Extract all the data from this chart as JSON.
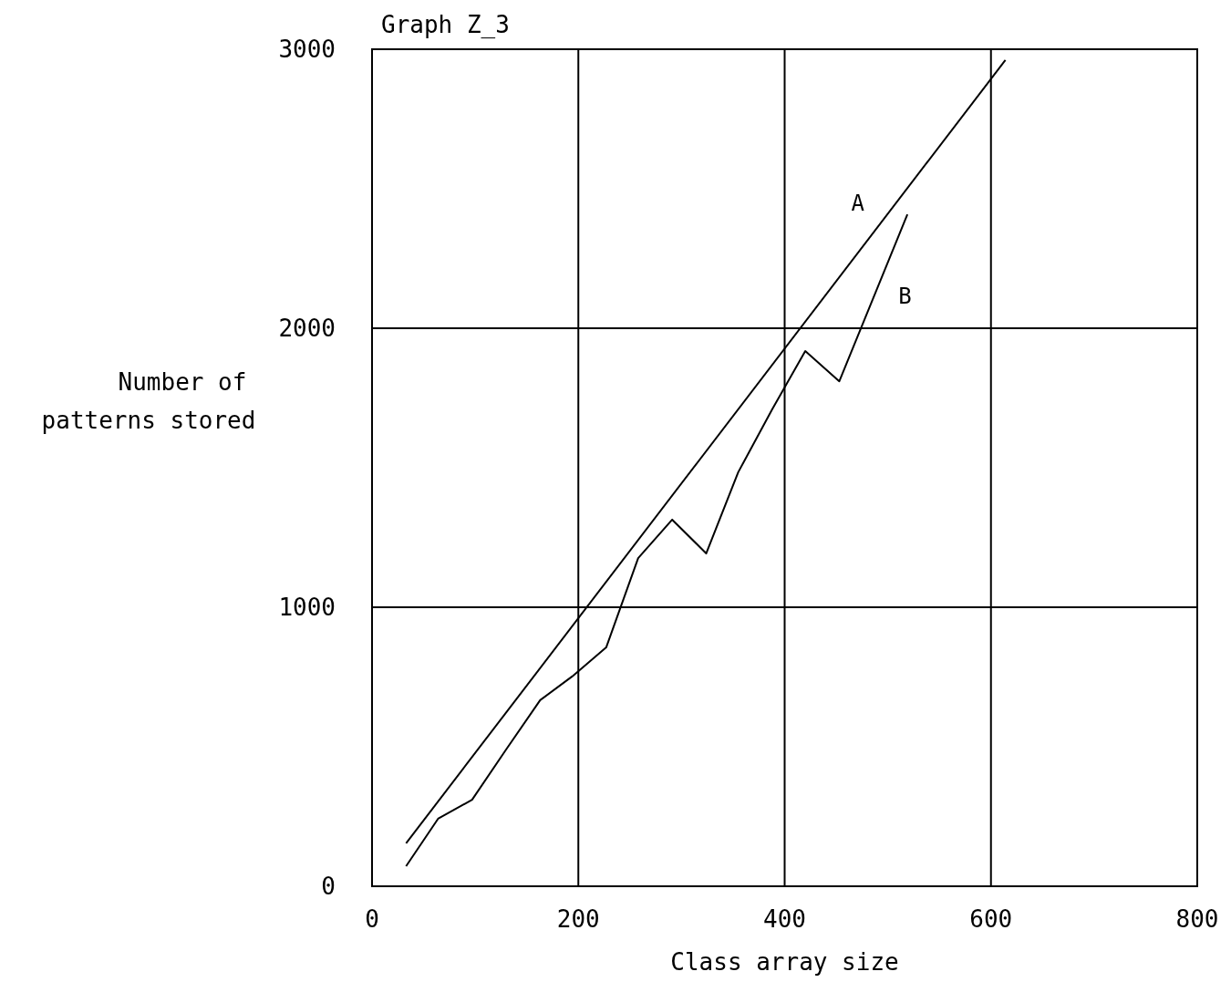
{
  "chart_data": {
    "type": "line",
    "title": "Graph Z_3",
    "xlabel": "Class array size",
    "ylabel": "Number of patterns stored",
    "xlim": [
      0,
      800
    ],
    "xticks": [
      0,
      200,
      400,
      600,
      800
    ],
    "ylim": [
      0,
      3000
    ],
    "yticks": [
      0,
      1000,
      2000,
      3000
    ],
    "grid": true,
    "marker": "none",
    "line_style": "solid",
    "series": [
      {
        "name": "A",
        "color": "#000000",
        "x": [
          33,
          614
        ],
        "values": [
          154,
          2961
        ]
      },
      {
        "name": "B",
        "color": "#000000",
        "x": [
          33,
          64,
          97,
          130,
          163,
          194,
          227,
          258,
          291,
          324,
          355,
          388,
          420,
          453,
          519
        ],
        "values": [
          72,
          242,
          310,
          490,
          667,
          752,
          856,
          1176,
          1314,
          1193,
          1484,
          1710,
          1918,
          1810,
          2408
        ]
      }
    ]
  }
}
